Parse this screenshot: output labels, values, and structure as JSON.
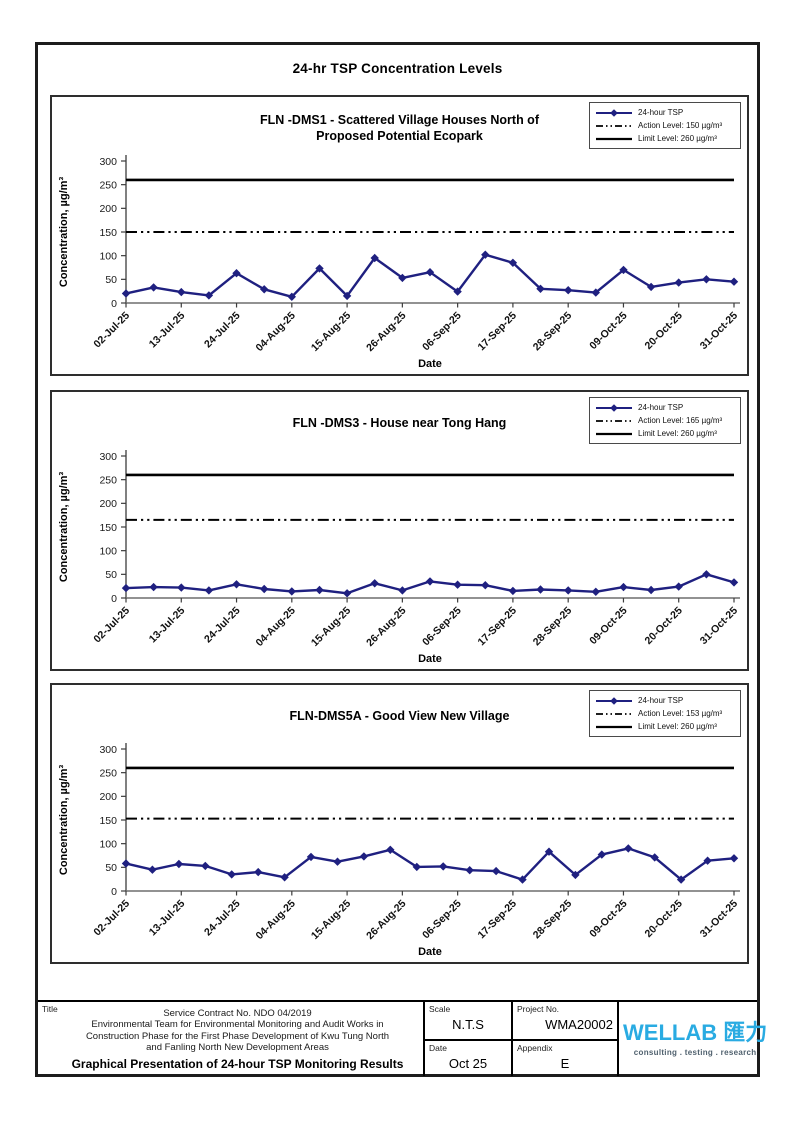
{
  "page_title": "24-hr TSP Concentration Levels",
  "colors": {
    "series_line": "#1f2080",
    "action_line": "#000000",
    "limit_line": "#000000",
    "logo_blue": "#29abe2"
  },
  "chart_data": [
    {
      "type": "line",
      "title": "FLN -DMS1 - Scattered Village Houses North of Proposed Potential Ecopark",
      "legend": [
        "24-hour TSP",
        "Action Level: 150 µg/m³",
        "Limit Level: 260 µg/m³"
      ],
      "series_name": "24-hour TSP",
      "action_level": 150,
      "limit_level": 260,
      "ylabel": "Concentration, µg/m³",
      "xlabel": "Date",
      "ylim": [
        0,
        300
      ],
      "y_ticks": [
        0,
        50,
        100,
        150,
        200,
        250,
        300
      ],
      "x_ticks": [
        "02-Jul-25",
        "13-Jul-25",
        "24-Jul-25",
        "04-Aug-25",
        "15-Aug-25",
        "26-Aug-25",
        "06-Sep-25",
        "17-Sep-25",
        "28-Sep-25",
        "09-Oct-25",
        "20-Oct-25",
        "31-Oct-25"
      ],
      "values": [
        20,
        33,
        23,
        16,
        63,
        29,
        13,
        73,
        15,
        95,
        53,
        65,
        24,
        102,
        85,
        30,
        27,
        22,
        70,
        34,
        43,
        50,
        45
      ]
    },
    {
      "type": "line",
      "title": "FLN -DMS3 - House near Tong Hang",
      "legend": [
        "24-hour TSP",
        "Action Level: 165 µg/m³",
        "Limit Level: 260 µg/m³"
      ],
      "series_name": "24-hour TSP",
      "action_level": 165,
      "limit_level": 260,
      "ylabel": "Concentration, µg/m³",
      "xlabel": "Date",
      "ylim": [
        0,
        300
      ],
      "y_ticks": [
        0,
        50,
        100,
        150,
        200,
        250,
        300
      ],
      "x_ticks": [
        "02-Jul-25",
        "13-Jul-25",
        "24-Jul-25",
        "04-Aug-25",
        "15-Aug-25",
        "26-Aug-25",
        "06-Sep-25",
        "17-Sep-25",
        "28-Sep-25",
        "09-Oct-25",
        "20-Oct-25",
        "31-Oct-25"
      ],
      "values": [
        21,
        23,
        22,
        16,
        29,
        19,
        14,
        17,
        10,
        31,
        16,
        35,
        28,
        27,
        15,
        18,
        16,
        13,
        23,
        17,
        24,
        50,
        33
      ]
    },
    {
      "type": "line",
      "title": "FLN-DMS5A - Good View New Village",
      "legend": [
        "24-hour TSP",
        "Action Level: 153 µg/m³",
        "Limit Level: 260 µg/m³"
      ],
      "series_name": "24-hour TSP",
      "action_level": 153,
      "limit_level": 260,
      "ylabel": "Concentration, µg/m³",
      "xlabel": "Date",
      "ylim": [
        0,
        300
      ],
      "y_ticks": [
        0,
        50,
        100,
        150,
        200,
        250,
        300
      ],
      "x_ticks": [
        "02-Jul-25",
        "13-Jul-25",
        "24-Jul-25",
        "04-Aug-25",
        "15-Aug-25",
        "26-Aug-25",
        "06-Sep-25",
        "17-Sep-25",
        "28-Sep-25",
        "09-Oct-25",
        "20-Oct-25",
        "31-Oct-25"
      ],
      "values": [
        58,
        45,
        57,
        53,
        35,
        40,
        29,
        72,
        62,
        73,
        87,
        51,
        52,
        44,
        42,
        24,
        83,
        34,
        77,
        90,
        71,
        24,
        64,
        69
      ]
    }
  ],
  "footer": {
    "title_label": "Title",
    "line1": "Service Contract No. NDO 04/2019",
    "line2": "Environmental Team for Environmental Monitoring and Audit Works in",
    "line3": "Construction Phase for the First Phase Development of Kwu Tung North",
    "line4": "and Fanling North New Development Areas",
    "doc_title": "Graphical Presentation of 24-hour TSP Monitoring Results",
    "scale_label": "Scale",
    "scale_value": "N.T.S",
    "project_label": "Project No.",
    "project_value": "WMA20002",
    "date_label": "Date",
    "date_value": "Oct 25",
    "appendix_label": "Appendix",
    "appendix_value": "E",
    "logo_text": "WELLAB 匯力",
    "logo_tagline": "consulting . testing . research"
  }
}
